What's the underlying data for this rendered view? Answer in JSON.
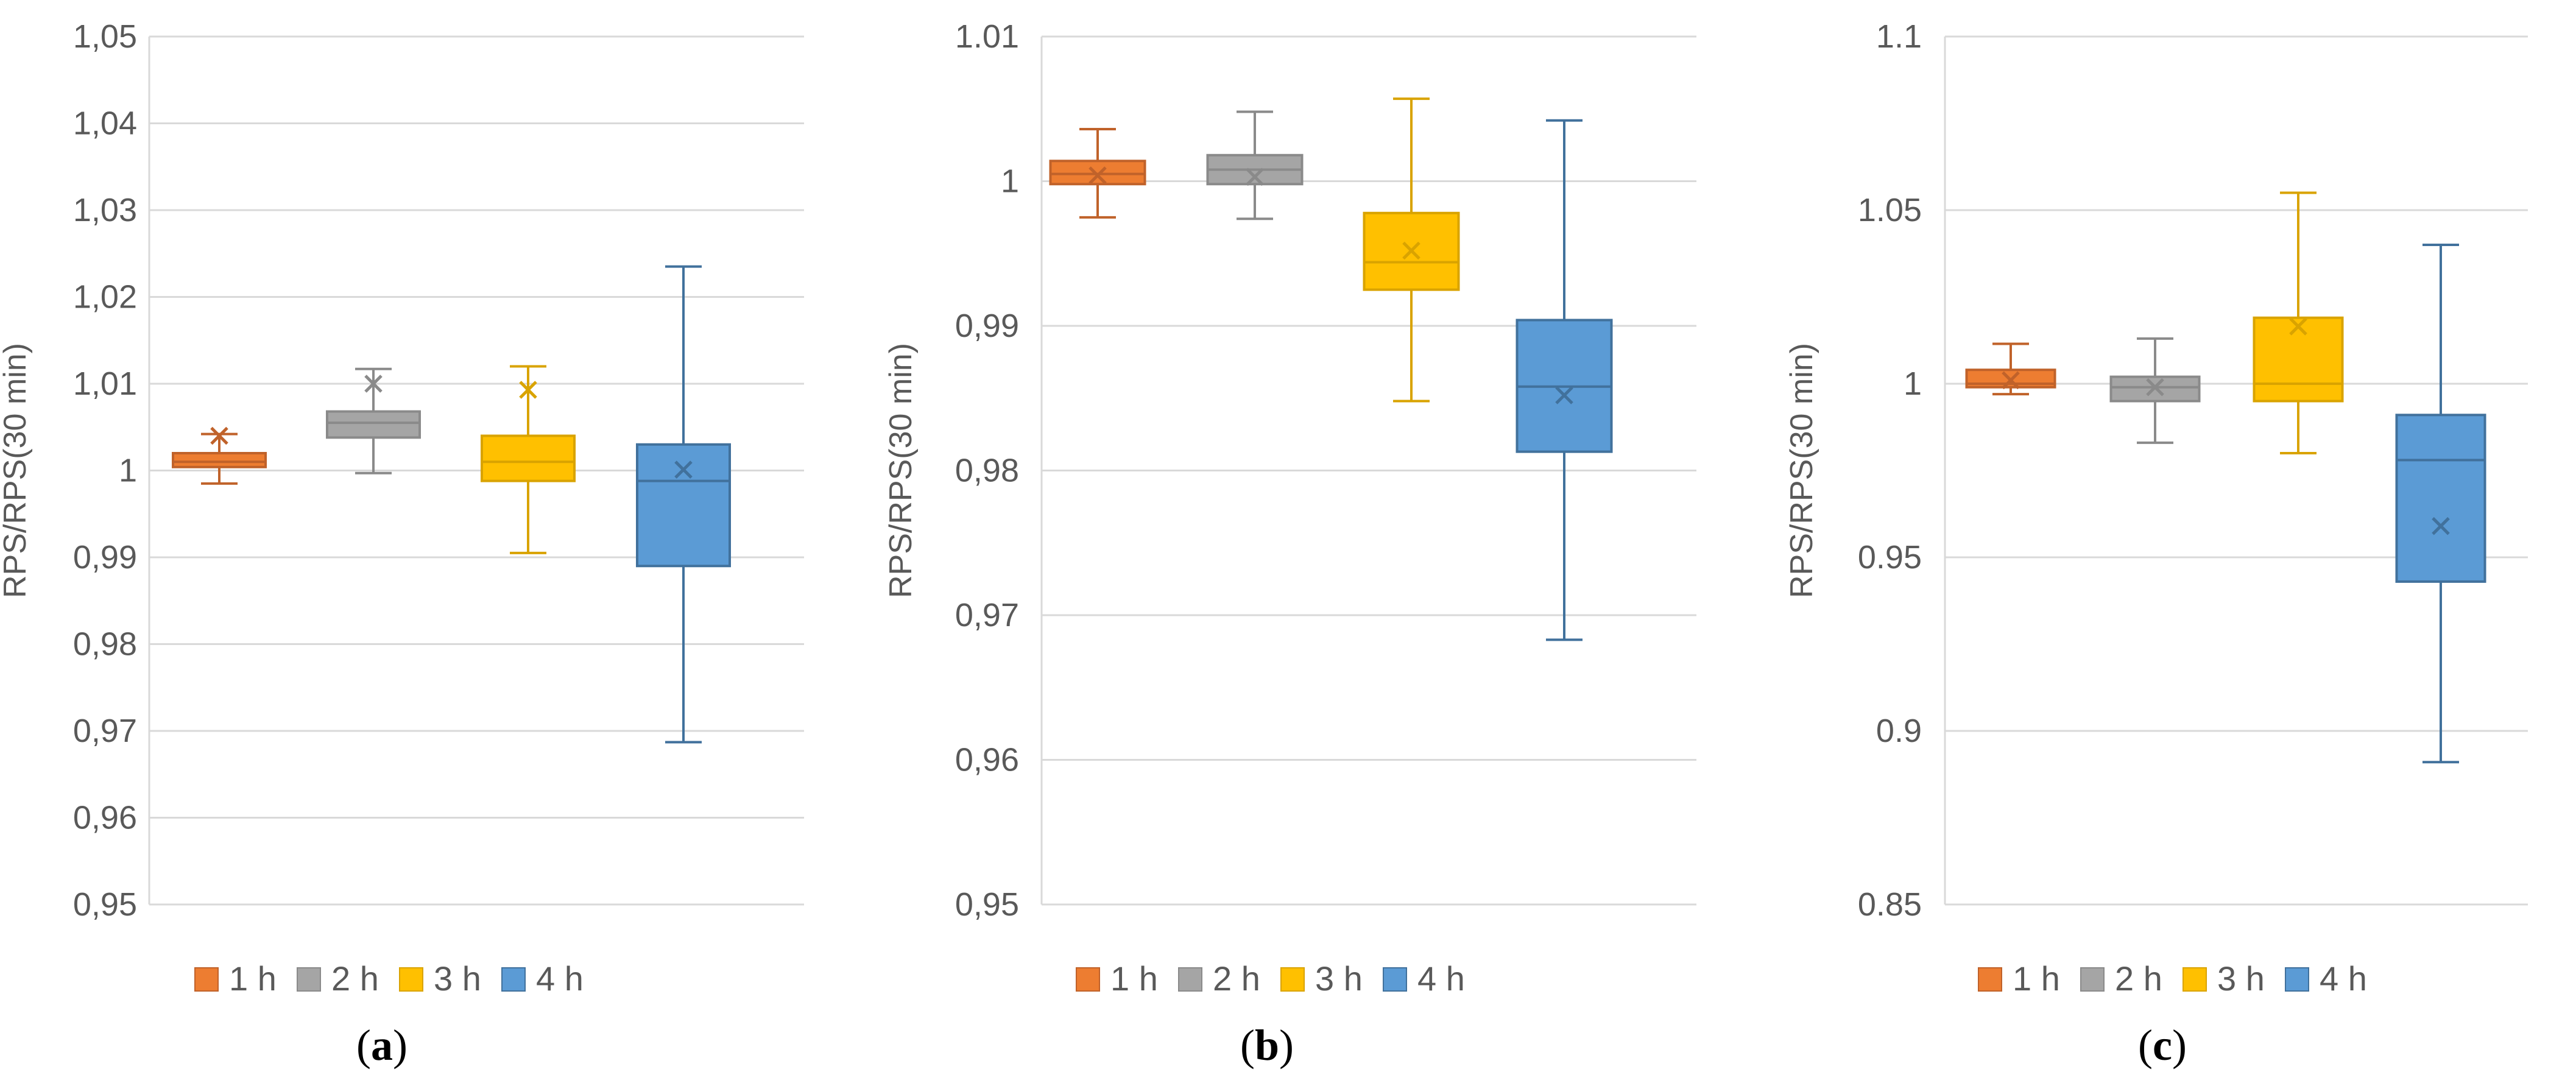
{
  "chart_data": [
    {
      "type": "box",
      "caption": "a",
      "ylabel": "RPS/RPS(30 min)",
      "ylim": [
        0.95,
        1.05
      ],
      "yticks": [
        0.95,
        0.96,
        0.97,
        0.98,
        0.99,
        1.0,
        1.01,
        1.02,
        1.03,
        1.04,
        1.05
      ],
      "ytick_labels": [
        "0,95",
        "0,96",
        "0,97",
        "0,98",
        "0,99",
        "1",
        "1,01",
        "1,02",
        "1,03",
        "1,04",
        "1,05"
      ],
      "categories": [
        "1 h",
        "2 h",
        "3 h",
        "4 h"
      ],
      "series": [
        {
          "name": "1 h",
          "min": 0.9985,
          "q1": 1.0004,
          "median": 1.001,
          "q3": 1.002,
          "max": 1.0042,
          "mean": 1.004
        },
        {
          "name": "2 h",
          "min": 0.9997,
          "q1": 1.0038,
          "median": 1.0055,
          "q3": 1.0068,
          "max": 1.0117,
          "mean": 1.01
        },
        {
          "name": "3 h",
          "min": 0.9905,
          "q1": 0.9988,
          "median": 1.001,
          "q3": 1.004,
          "max": 1.012,
          "mean": 1.0093
        },
        {
          "name": "4 h",
          "min": 0.9687,
          "q1": 0.989,
          "median": 0.9988,
          "q3": 1.003,
          "max": 1.0235,
          "mean": 1.0001
        }
      ]
    },
    {
      "type": "box",
      "caption": "b",
      "ylabel": "RPS/RPS(30 min)",
      "ylim": [
        0.95,
        1.01
      ],
      "yticks": [
        0.95,
        0.96,
        0.97,
        0.98,
        0.99,
        1.0,
        1.01
      ],
      "ytick_labels": [
        "0,95",
        "0,96",
        "0,97",
        "0,98",
        "0,99",
        "1",
        "1.01"
      ],
      "categories": [
        "1 h",
        "2 h",
        "3 h",
        "4 h"
      ],
      "series": [
        {
          "name": "1 h",
          "min": 0.9975,
          "q1": 0.9998,
          "median": 1.0005,
          "q3": 1.0014,
          "max": 1.0036,
          "mean": 1.0004
        },
        {
          "name": "2 h",
          "min": 0.9974,
          "q1": 0.9998,
          "median": 1.0008,
          "q3": 1.0018,
          "max": 1.0048,
          "mean": 1.0003
        },
        {
          "name": "3 h",
          "min": 0.9848,
          "q1": 0.9925,
          "median": 0.9944,
          "q3": 0.9978,
          "max": 1.0057,
          "mean": 0.9952
        },
        {
          "name": "4 h",
          "min": 0.9683,
          "q1": 0.9813,
          "median": 0.9858,
          "q3": 0.9904,
          "max": 1.0042,
          "mean": 0.9852
        }
      ]
    },
    {
      "type": "box",
      "caption": "c",
      "ylabel": "RPS/RPS(30 min)",
      "ylim": [
        0.85,
        1.1
      ],
      "yticks": [
        0.85,
        0.9,
        0.95,
        1.0,
        1.05,
        1.1
      ],
      "ytick_labels": [
        "0.85",
        "0.9",
        "0.95",
        "1",
        "1.05",
        "1.1"
      ],
      "categories": [
        "1 h",
        "2 h",
        "3 h",
        "4 h"
      ],
      "series": [
        {
          "name": "1 h",
          "min": 0.997,
          "q1": 0.999,
          "median": 1.0,
          "q3": 1.004,
          "max": 1.0115,
          "mean": 1.001
        },
        {
          "name": "2 h",
          "min": 0.983,
          "q1": 0.995,
          "median": 0.999,
          "q3": 1.002,
          "max": 1.013,
          "mean": 0.999
        },
        {
          "name": "3 h",
          "min": 0.98,
          "q1": 0.995,
          "median": 1.0,
          "q3": 1.019,
          "max": 1.055,
          "mean": 1.0165
        },
        {
          "name": "4 h",
          "min": 0.891,
          "q1": 0.943,
          "median": 0.978,
          "q3": 0.991,
          "max": 1.04,
          "mean": 0.959
        }
      ]
    }
  ],
  "legend": {
    "items": [
      {
        "label": "1 h",
        "color": "#ED7D31"
      },
      {
        "label": "2 h",
        "color": "#A5A5A5"
      },
      {
        "label": "3 h",
        "color": "#FFC000"
      },
      {
        "label": "4 h",
        "color": "#5B9BD5"
      }
    ]
  },
  "colors": {
    "fills": [
      "#ED7D31",
      "#A5A5A5",
      "#FFC000",
      "#5B9BD5"
    ],
    "strokes": [
      "#C0622A",
      "#8A8A8A",
      "#D9A300",
      "#41719C"
    ],
    "grid": "#D9D9D9",
    "text": "#595959"
  }
}
